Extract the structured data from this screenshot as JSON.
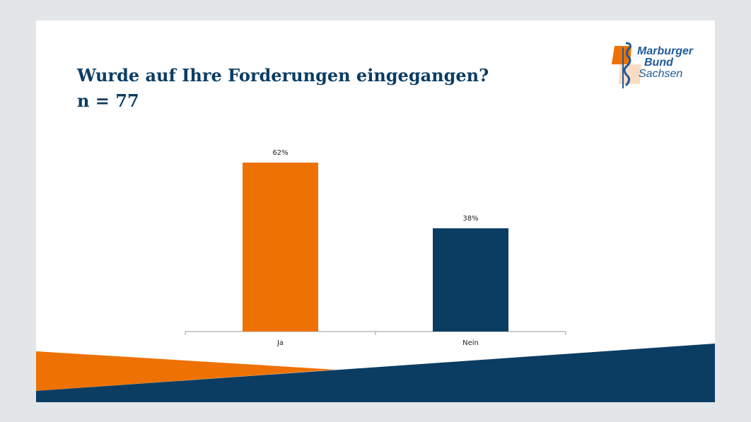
{
  "title": {
    "line1": "Wurde auf Ihre Forderungen eingegangen?",
    "line2": "n = 77"
  },
  "logo": {
    "line1": "Marburger",
    "line2": "Bund",
    "line3": "Sachsen"
  },
  "colors": {
    "orange": "#ee7203",
    "navy": "#0b3d63"
  },
  "chart_data": {
    "type": "bar",
    "title": "Wurde auf Ihre Forderungen eingegangen?",
    "categories": [
      "Ja",
      "Nein"
    ],
    "values": [
      62,
      38
    ],
    "value_labels": [
      "62%",
      "38%"
    ],
    "colors": [
      "#ee7203",
      "#0b3d63"
    ],
    "ylim": [
      0,
      100
    ],
    "xlabel": "",
    "ylabel": "",
    "grid": false
  }
}
